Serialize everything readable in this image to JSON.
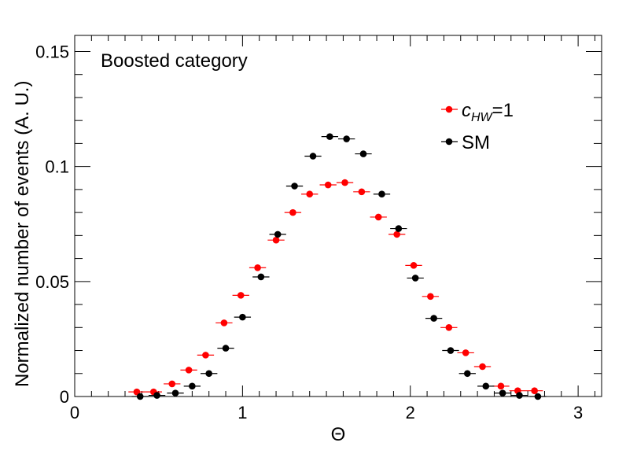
{
  "chart_data": {
    "type": "scatter",
    "title": "",
    "annotation": "Boosted category",
    "xlabel": "Θ",
    "ylabel": "Normalized number of events (A. U.)",
    "xlim": [
      0,
      3.14
    ],
    "ylim": [
      0,
      0.157
    ],
    "bin_half_width": 0.05,
    "x_ticks": [
      0,
      1,
      2,
      3
    ],
    "x_tick_labels": [
      "0",
      "1",
      "2",
      "3"
    ],
    "y_ticks": [
      0,
      0.05,
      0.1,
      0.15
    ],
    "y_tick_labels": [
      "0",
      "0.05",
      "0.1",
      "0.15"
    ],
    "legend": {
      "placement": "top-right",
      "entries": [
        {
          "name": "c",
          "subscript": "HW",
          "suffix": "=1",
          "color": "#ff0000"
        },
        {
          "name": "SM",
          "subscript": "",
          "suffix": "",
          "color": "#000000"
        }
      ]
    },
    "series": [
      {
        "name": "c_HW=1",
        "color": "#ff0000",
        "x": [
          0.37,
          0.47,
          0.58,
          0.68,
          0.78,
          0.89,
          0.99,
          1.09,
          1.2,
          1.3,
          1.4,
          1.51,
          1.61,
          1.71,
          1.81,
          1.92,
          2.02,
          2.12,
          2.23,
          2.33,
          2.43,
          2.54,
          2.64,
          2.74
        ],
        "y": [
          0.002,
          0.002,
          0.0055,
          0.0115,
          0.018,
          0.032,
          0.044,
          0.056,
          0.068,
          0.08,
          0.088,
          0.092,
          0.093,
          0.089,
          0.078,
          0.0705,
          0.057,
          0.0435,
          0.03,
          0.019,
          0.013,
          0.0045,
          0.0025,
          0.0025
        ]
      },
      {
        "name": "SM",
        "color": "#000000",
        "x": [
          0.39,
          0.49,
          0.6,
          0.7,
          0.8,
          0.9,
          1.0,
          1.11,
          1.21,
          1.31,
          1.42,
          1.52,
          1.62,
          1.72,
          1.83,
          1.93,
          2.03,
          2.14,
          2.24,
          2.34,
          2.45,
          2.55,
          2.65,
          2.76
        ],
        "y": [
          0.0,
          0.0005,
          0.0015,
          0.0045,
          0.01,
          0.021,
          0.0345,
          0.052,
          0.0705,
          0.0915,
          0.1045,
          0.113,
          0.112,
          0.1055,
          0.088,
          0.073,
          0.0515,
          0.034,
          0.02,
          0.01,
          0.0045,
          0.0015,
          0.0005,
          0.0
        ]
      }
    ]
  }
}
